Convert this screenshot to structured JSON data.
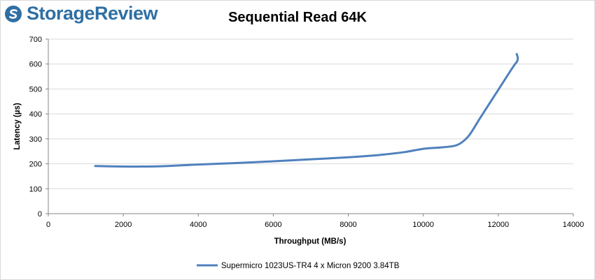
{
  "logo": {
    "text": "StorageReview"
  },
  "chart_data": {
    "type": "line",
    "title": "Sequential Read 64K",
    "xlabel": "Throughput (MB/s)",
    "ylabel": "Latency (µs)",
    "xlim": [
      0,
      14000
    ],
    "ylim": [
      0,
      700
    ],
    "xticks": [
      0,
      2000,
      4000,
      6000,
      8000,
      10000,
      12000,
      14000
    ],
    "yticks": [
      0,
      100,
      200,
      300,
      400,
      500,
      600,
      700
    ],
    "grid": "horizontal",
    "legend": "bottom",
    "series": [
      {
        "name": "Supermicro 1023US-TR4 4 x Micron 9200 3.84TB",
        "color": "#4f81bd",
        "points": [
          [
            1250,
            191
          ],
          [
            2000,
            189
          ],
          [
            2500,
            189
          ],
          [
            3000,
            190
          ],
          [
            4000,
            197
          ],
          [
            5000,
            203
          ],
          [
            6000,
            210
          ],
          [
            7000,
            218
          ],
          [
            8000,
            226
          ],
          [
            8800,
            235
          ],
          [
            9500,
            247
          ],
          [
            10000,
            260
          ],
          [
            10500,
            266
          ],
          [
            10900,
            275
          ],
          [
            11200,
            310
          ],
          [
            11500,
            380
          ],
          [
            11800,
            450
          ],
          [
            12100,
            520
          ],
          [
            12400,
            590
          ],
          [
            12500,
            610
          ],
          [
            12520,
            625
          ],
          [
            12490,
            640
          ]
        ]
      }
    ]
  }
}
